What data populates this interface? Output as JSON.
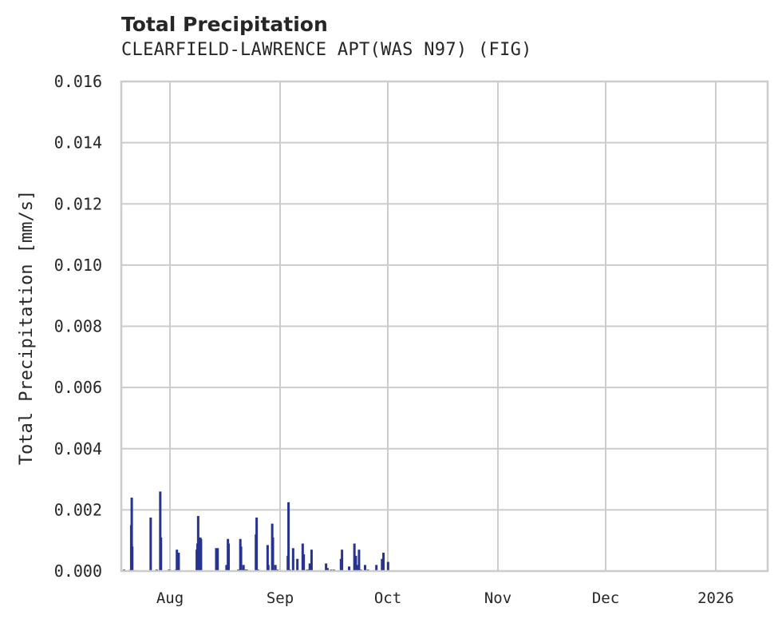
{
  "header": {
    "title": "Total Precipitation",
    "subtitle": "CLEARFIELD-LAWRENCE APT(WAS N97) (FIG)"
  },
  "colors": {
    "series": "#26348f",
    "grid": "#cccccc",
    "frame": "#cccccc",
    "text": "#262626"
  },
  "chart_data": {
    "type": "bar",
    "title": "Total Precipitation",
    "subtitle": "CLEARFIELD-LAWRENCE APT(WAS N97) (FIG)",
    "xlabel": "",
    "ylabel": "Total Precipitation [mm/s]",
    "ylim": [
      0.0,
      0.016
    ],
    "yticks": [
      "0.000",
      "0.002",
      "0.004",
      "0.006",
      "0.008",
      "0.010",
      "0.012",
      "0.014",
      "0.016"
    ],
    "xticks": [
      "Aug",
      "Sep",
      "Oct",
      "Nov",
      "Dec",
      "2026"
    ],
    "grid": true,
    "legend": null,
    "x_unit": "days since Jul 18 2025 (approx.)",
    "series": [
      {
        "name": "Total Precipitation",
        "points": [
          [
            0.8,
            5e-05
          ],
          [
            2.4,
            4e-05
          ],
          [
            2.8,
            0.0015
          ],
          [
            2.95,
            0.0024
          ],
          [
            3.1,
            0.0008
          ],
          [
            4.0,
            3e-05
          ],
          [
            8.3,
            0.00175
          ],
          [
            10.0,
            5e-05
          ],
          [
            11.0,
            0.0026
          ],
          [
            11.2,
            0.0011
          ],
          [
            13.5,
            5e-05
          ],
          [
            15.5,
            5e-05
          ],
          [
            15.7,
            0.0007
          ],
          [
            16.2,
            0.0006
          ],
          [
            21.3,
            0.0007
          ],
          [
            21.5,
            0.0009
          ],
          [
            21.7,
            0.0018
          ],
          [
            21.9,
            0.001
          ],
          [
            22.3,
            0.0011
          ],
          [
            22.5,
            0.00105
          ],
          [
            26.8,
            0.00075
          ],
          [
            27.2,
            0.00075
          ],
          [
            29.7,
            0.0002
          ],
          [
            30.1,
            0.00105
          ],
          [
            30.3,
            0.0009
          ],
          [
            33.0,
            5e-05
          ],
          [
            33.6,
            0.00105
          ],
          [
            33.8,
            0.0008
          ],
          [
            34.5,
            0.0002
          ],
          [
            35.0,
            5e-05
          ],
          [
            35.4,
            5e-05
          ],
          [
            38.0,
            0.0012
          ],
          [
            38.2,
            0.00175
          ],
          [
            38.6,
            5e-05
          ],
          [
            41.3,
            0.00085
          ],
          [
            41.5,
            0.0002
          ],
          [
            42.6,
            0.00155
          ],
          [
            42.8,
            0.0011
          ],
          [
            43.5,
            0.0002
          ],
          [
            44.0,
            5e-05
          ],
          [
            47.0,
            0.0005
          ],
          [
            47.2,
            0.00225
          ],
          [
            47.6,
            5e-05
          ],
          [
            48.5,
            0.00075
          ],
          [
            49.7,
            0.0004
          ],
          [
            51.2,
            0.0009
          ],
          [
            51.5,
            0.00055
          ],
          [
            52.5,
            5e-05
          ],
          [
            53.2,
            0.00025
          ],
          [
            53.7,
            0.0007
          ],
          [
            57.8,
            0.00025
          ],
          [
            58.2,
            0.0001
          ],
          [
            59.2,
            5e-05
          ],
          [
            60.0,
            5e-05
          ],
          [
            62.0,
            0.0004
          ],
          [
            62.3,
            0.0007
          ],
          [
            64.3,
            0.00015
          ],
          [
            65.8,
            0.0009
          ],
          [
            66.2,
            0.0005
          ],
          [
            66.8,
            0.0002
          ],
          [
            67.1,
            0.0007
          ],
          [
            67.6,
            5e-05
          ],
          [
            68.8,
            0.0002
          ],
          [
            69.6,
            5e-05
          ],
          [
            72.0,
            0.0002
          ],
          [
            73.6,
            0.0004
          ],
          [
            74.0,
            0.0006
          ],
          [
            75.3,
            0.0003
          ]
        ]
      }
    ]
  }
}
